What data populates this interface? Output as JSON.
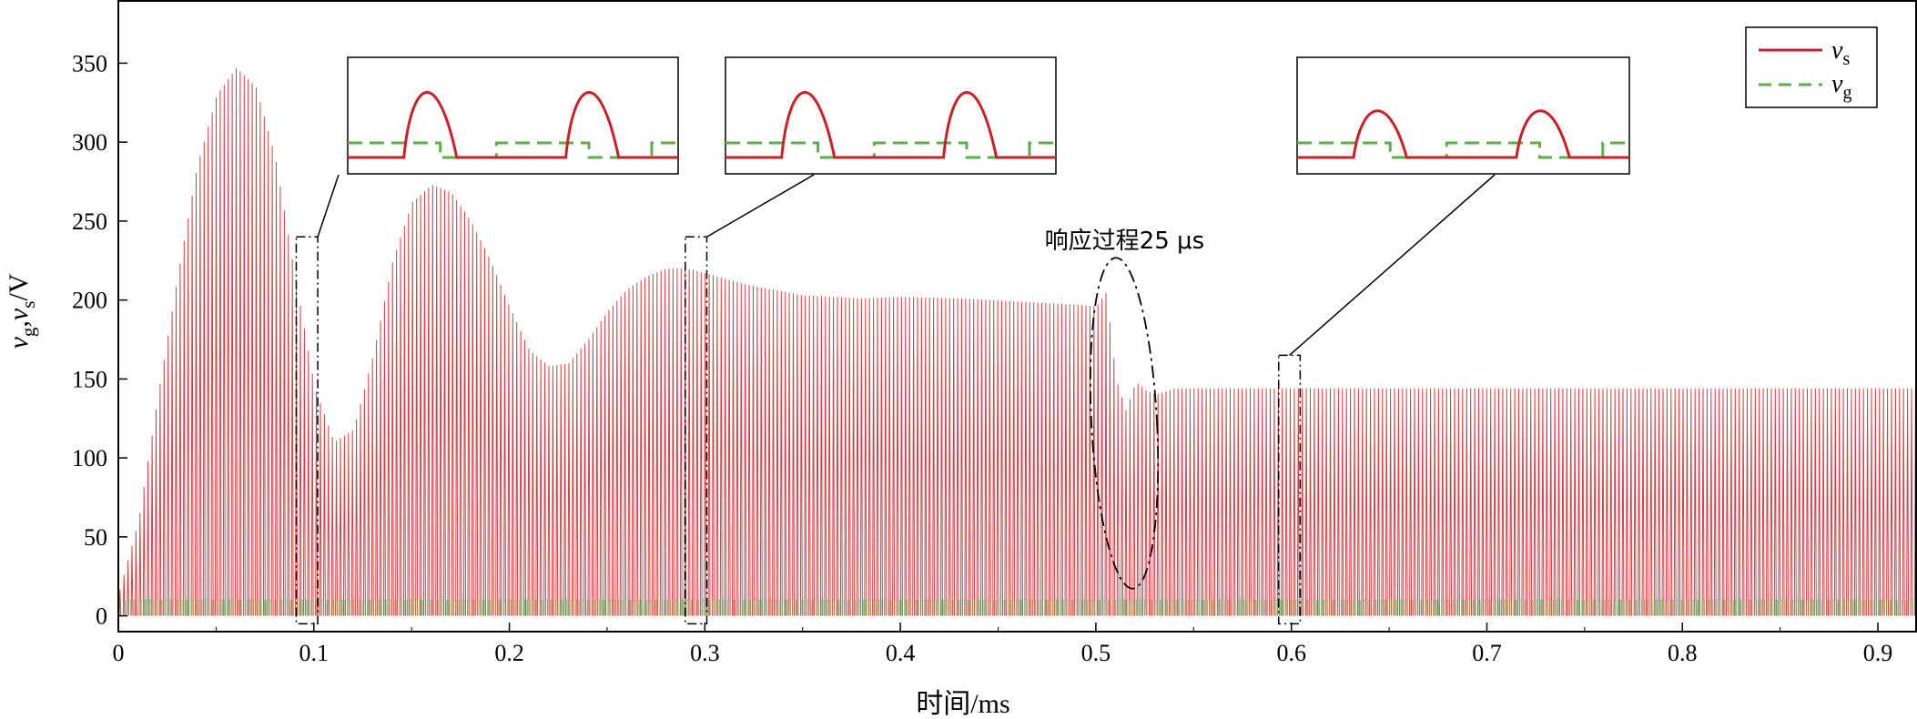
{
  "chart_data": {
    "type": "line",
    "title": "",
    "xlabel": "时间/ms",
    "ylabel": "v_g, v_s/V",
    "ylabel_parts": [
      "v",
      "g",
      ",",
      "v",
      "s",
      "/V"
    ],
    "xlim": [
      0,
      0.92
    ],
    "ylim": [
      -10,
      390
    ],
    "x_ticks": [
      0,
      0.1,
      0.2,
      0.3,
      0.4,
      0.5,
      0.6,
      0.7,
      0.8,
      0.9
    ],
    "x_tick_labels": [
      "0",
      "0.1",
      "0.2",
      "0.3",
      "0.4",
      "0.5",
      "0.6",
      "0.7",
      "0.8",
      "0.9"
    ],
    "y_ticks": [
      0,
      50,
      100,
      150,
      200,
      250,
      300,
      350
    ],
    "y_tick_labels": [
      "0",
      "50",
      "100",
      "150",
      "200",
      "250",
      "300",
      "350"
    ],
    "grid": false,
    "legend": {
      "position": "top-right"
    },
    "series": [
      {
        "name": "v_s",
        "name_main": "v",
        "name_sub": "s",
        "color": "#cc1f26",
        "style": "solid",
        "envelope": {
          "x": [
            0,
            0.01,
            0.02,
            0.03,
            0.04,
            0.05,
            0.06,
            0.07,
            0.08,
            0.09,
            0.1,
            0.11,
            0.12,
            0.13,
            0.14,
            0.15,
            0.16,
            0.17,
            0.18,
            0.19,
            0.2,
            0.21,
            0.22,
            0.23,
            0.24,
            0.25,
            0.26,
            0.27,
            0.28,
            0.29,
            0.3,
            0.32,
            0.35,
            0.38,
            0.4,
            0.43,
            0.46,
            0.49,
            0.5,
            0.505,
            0.51,
            0.515,
            0.52,
            0.525,
            0.53,
            0.54,
            0.55,
            0.6,
            0.65,
            0.7,
            0.75,
            0.8,
            0.85,
            0.9,
            0.92
          ],
          "y": [
            15,
            60,
            140,
            215,
            285,
            330,
            347,
            335,
            290,
            215,
            145,
            110,
            118,
            165,
            225,
            262,
            273,
            268,
            250,
            225,
            195,
            168,
            158,
            160,
            175,
            193,
            207,
            215,
            220,
            220,
            217,
            210,
            203,
            201,
            202,
            201,
            199,
            197,
            196,
            205,
            150,
            130,
            148,
            143,
            140,
            144,
            144,
            144,
            144,
            144,
            144,
            144,
            144,
            144,
            144
          ]
        }
      },
      {
        "name": "v_g",
        "name_main": "v",
        "name_sub": "g",
        "color": "#5ab046",
        "style": "dashed",
        "level_high": 10,
        "level_low": 0
      }
    ],
    "annotations": [
      {
        "text": "响应过程25 μs",
        "x": 0.51,
        "y": 250
      }
    ],
    "zoom_regions": [
      {
        "x0": 0.091,
        "x1": 0.102,
        "y0": -5,
        "y1": 240
      },
      {
        "x0": 0.29,
        "x1": 0.301,
        "y0": -5,
        "y1": 240
      },
      {
        "x0": 0.5935,
        "x1": 0.6045,
        "y0": -5,
        "y1": 165
      }
    ]
  }
}
